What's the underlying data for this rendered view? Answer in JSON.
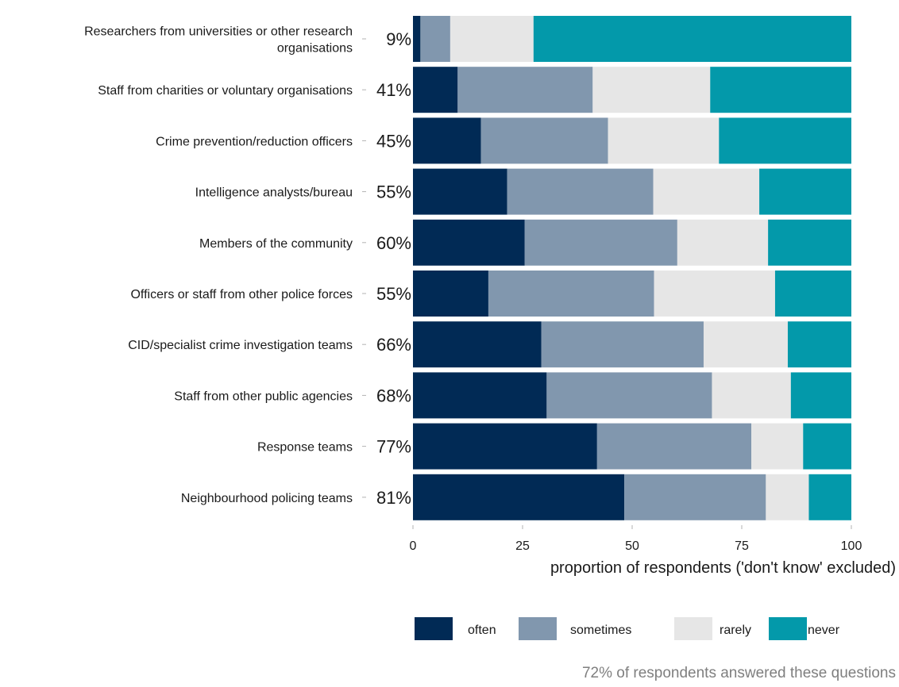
{
  "chart_data": {
    "type": "bar",
    "orientation": "horizontal",
    "stacked": true,
    "categories": [
      [
        "Researchers from universities or other research",
        "organisations"
      ],
      [
        "Staff from charities or voluntary organisations"
      ],
      [
        "Crime prevention/reduction officers"
      ],
      [
        "Intelligence analysts/bureau"
      ],
      [
        "Members of the community"
      ],
      [
        "Officers or staff from other police forces"
      ],
      [
        "CID/specialist crime investigation teams"
      ],
      [
        "Staff from other public agencies"
      ],
      [
        "Response teams"
      ],
      [
        "Neighbourhood policing teams"
      ]
    ],
    "percent_labels": [
      "9%",
      "41%",
      "45%",
      "55%",
      "60%",
      "55%",
      "66%",
      "68%",
      "77%",
      "81%"
    ],
    "series": [
      {
        "name": "often",
        "color": "#012a55",
        "values": [
          1.7,
          10.2,
          15.5,
          21.5,
          25.5,
          17.2,
          29.3,
          30.5,
          42.0,
          48.2
        ]
      },
      {
        "name": "sometimes",
        "color": "#8197ae",
        "values": [
          6.8,
          30.8,
          29.0,
          33.3,
          34.8,
          37.8,
          37.0,
          37.7,
          35.2,
          32.3
        ]
      },
      {
        "name": "rarely",
        "color": "#e6e6e6",
        "values": [
          19.0,
          26.8,
          25.3,
          24.2,
          20.7,
          27.6,
          19.2,
          18.0,
          11.8,
          9.8
        ]
      },
      {
        "name": "never",
        "color": "#0399aa",
        "values": [
          72.5,
          32.2,
          30.2,
          21.0,
          19.0,
          17.4,
          14.5,
          13.8,
          11.0,
          9.7
        ]
      }
    ],
    "x_ticks": [
      "0",
      "25",
      "50",
      "75",
      "100"
    ],
    "xlim": [
      0,
      100
    ],
    "xlabel": "proportion of respondents ('don't know' excluded)",
    "legend_position": "bottom",
    "footnote": "72% of respondents answered these questions",
    "grid": false
  }
}
